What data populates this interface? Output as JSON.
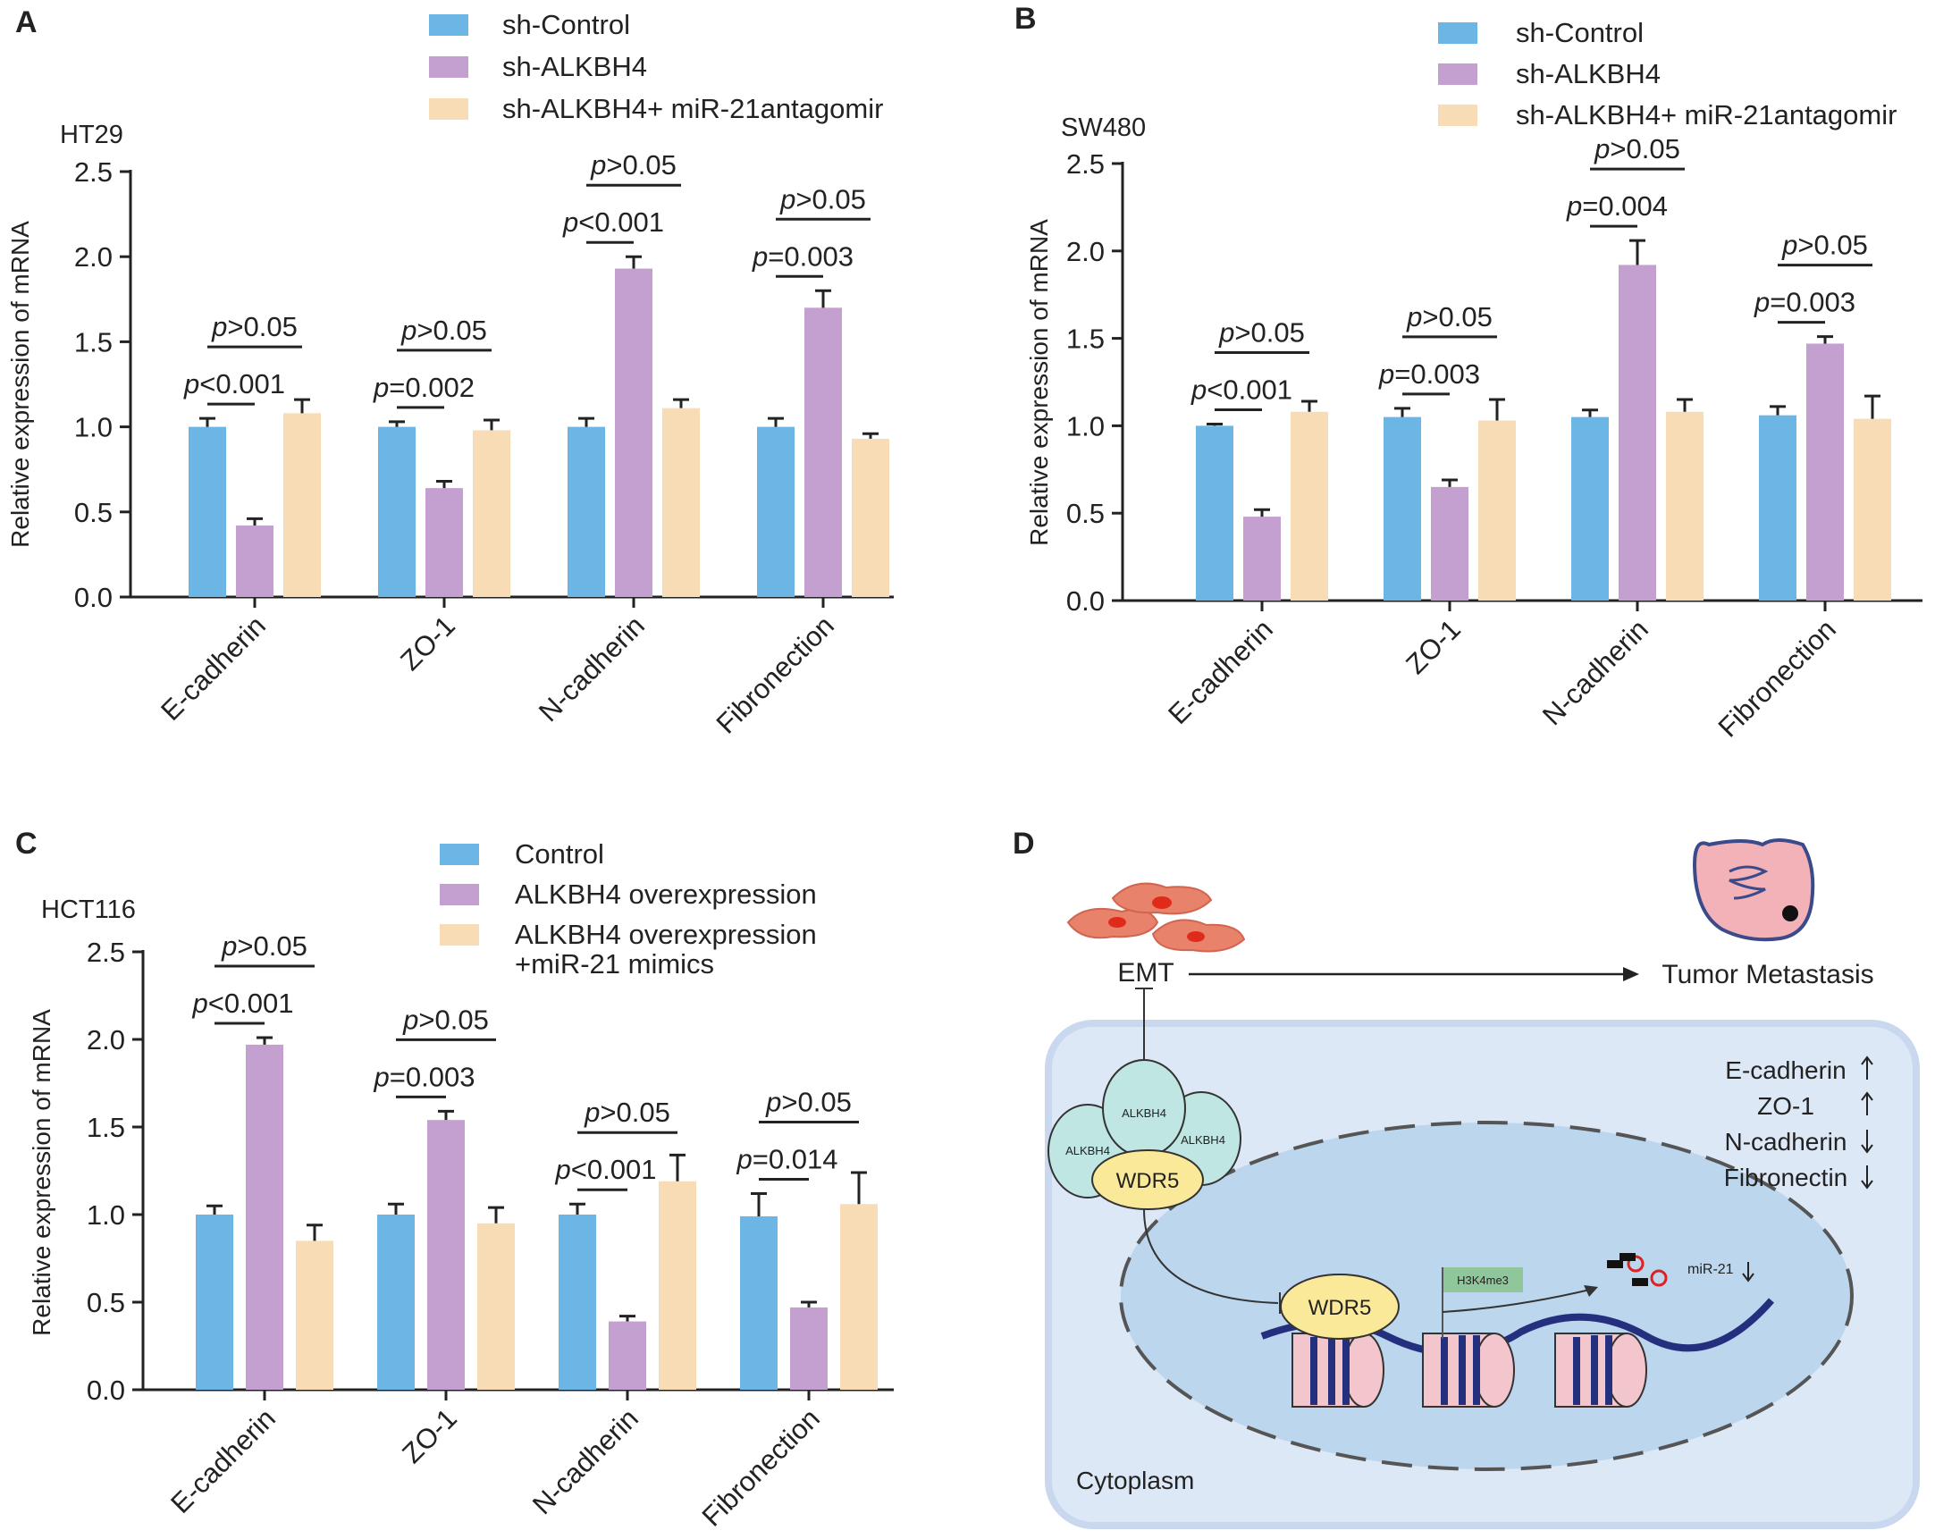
{
  "chart_data": [
    {
      "type": "bar",
      "panel": "A",
      "title": "HT29",
      "ylabel": "Relative expression of mRNA",
      "categories": [
        "E-cadherin",
        "ZO-1",
        "N-cadherin",
        "Fibronection"
      ],
      "series": [
        {
          "name": "sh-Control",
          "color": "#6cb6e6",
          "values": [
            1.0,
            1.0,
            1.0,
            1.0
          ],
          "errors": [
            0.05,
            0.03,
            0.05,
            0.05
          ]
        },
        {
          "name": "sh-ALKBH4",
          "color": "#c4a0d0",
          "values": [
            0.42,
            0.64,
            1.93,
            1.7
          ],
          "errors": [
            0.04,
            0.04,
            0.07,
            0.1
          ]
        },
        {
          "name": "sh-ALKBH4+ miR-21antagomir",
          "color": "#f8dcb6",
          "values": [
            1.08,
            0.98,
            1.11,
            0.93
          ],
          "errors": [
            0.08,
            0.06,
            0.05,
            0.03
          ]
        }
      ],
      "comparisons": [
        {
          "near": "p<0.001",
          "far": "p>0.05"
        },
        {
          "near": "p=0.002",
          "far": "p>0.05"
        },
        {
          "near": "p<0.001",
          "far": "p>0.05"
        },
        {
          "near": "p=0.003",
          "far": "p>0.05"
        }
      ],
      "ylim": [
        0,
        2.5
      ],
      "yticks": [
        {
          "value": 0,
          "label": "0.0"
        },
        0.5,
        {
          "value": 1,
          "label": "1.0"
        },
        1.5,
        {
          "value": 2,
          "label": "2.0"
        },
        2.5
      ]
    },
    {
      "type": "bar",
      "panel": "B",
      "title": "SW480",
      "ylabel": "Relative expression of mRNA",
      "categories": [
        "E-cadherin",
        "ZO-1",
        "N-cadherin",
        "Fibronection"
      ],
      "series": [
        {
          "name": "sh-Control",
          "color": "#6cb6e6",
          "values": [
            1.0,
            1.05,
            1.05,
            1.06
          ],
          "errors": [
            0.01,
            0.05,
            0.04,
            0.05
          ]
        },
        {
          "name": "sh-ALKBH4",
          "color": "#c4a0d0",
          "values": [
            0.48,
            0.65,
            1.92,
            1.47
          ],
          "errors": [
            0.04,
            0.04,
            0.14,
            0.04
          ]
        },
        {
          "name": "sh-ALKBH4+ miR-21antagomir",
          "color": "#f8dcb6",
          "values": [
            1.08,
            1.03,
            1.08,
            1.04
          ],
          "errors": [
            0.06,
            0.12,
            0.07,
            0.13
          ]
        }
      ],
      "comparisons": [
        {
          "near": "p<0.001",
          "far": "p>0.05"
        },
        {
          "near": "p=0.003",
          "far": "p>0.05"
        },
        {
          "near": "p=0.004",
          "far": "p>0.05"
        },
        {
          "near": "p=0.003",
          "far": "p>0.05"
        }
      ],
      "ylim": [
        0,
        2.5
      ],
      "yticks": [
        {
          "value": 0,
          "label": "0.0"
        },
        0.5,
        {
          "value": 1,
          "label": "1.0"
        },
        1.5,
        {
          "value": 2,
          "label": "2.0"
        },
        2.5
      ]
    },
    {
      "type": "bar",
      "panel": "C",
      "title": "HCT116",
      "ylabel": "Relative expression of mRNA",
      "categories": [
        "E-cadherin",
        "ZO-1",
        "N-cadherin",
        "Fibronection"
      ],
      "series": [
        {
          "name": "Control",
          "color": "#6cb6e6",
          "values": [
            1.0,
            1.0,
            1.0,
            0.99
          ],
          "errors": [
            0.05,
            0.06,
            0.06,
            0.13
          ]
        },
        {
          "name": "ALKBH4 overexpression",
          "color": "#c4a0d0",
          "values": [
            1.97,
            1.54,
            0.39,
            0.47
          ],
          "errors": [
            0.04,
            0.05,
            0.03,
            0.03
          ]
        },
        {
          "name": "ALKBH4 overexpression +miR-21 mimics",
          "color": "#f8dcb6",
          "values": [
            0.85,
            0.95,
            1.19,
            1.06
          ],
          "errors": [
            0.09,
            0.09,
            0.15,
            0.18
          ]
        }
      ],
      "comparisons": [
        {
          "near": "p<0.001",
          "far": "p>0.05"
        },
        {
          "near": "p=0.003",
          "far": "p>0.05"
        },
        {
          "near": "p<0.001",
          "far": "p>0.05"
        },
        {
          "near": "p=0.014",
          "far": "p>0.05"
        }
      ],
      "ylim": [
        0,
        2.5
      ],
      "yticks": [
        {
          "value": 0,
          "label": "0.0"
        },
        0.5,
        {
          "value": 1,
          "label": "1.0"
        },
        1.5,
        {
          "value": 2,
          "label": "2.0"
        },
        2.5
      ]
    }
  ],
  "diagram": {
    "panel": "D",
    "emt": "EMT",
    "outcome": "Tumor Metastasis",
    "alkbh4": "ALKBH4",
    "wdr5": "WDR5",
    "mark": "H3K4me3",
    "mirna": "miR-21",
    "compartment": "Cytoplasm",
    "markers": [
      "E-cadherin",
      "ZO-1",
      "N-cadherin",
      "Fibronectin"
    ]
  }
}
